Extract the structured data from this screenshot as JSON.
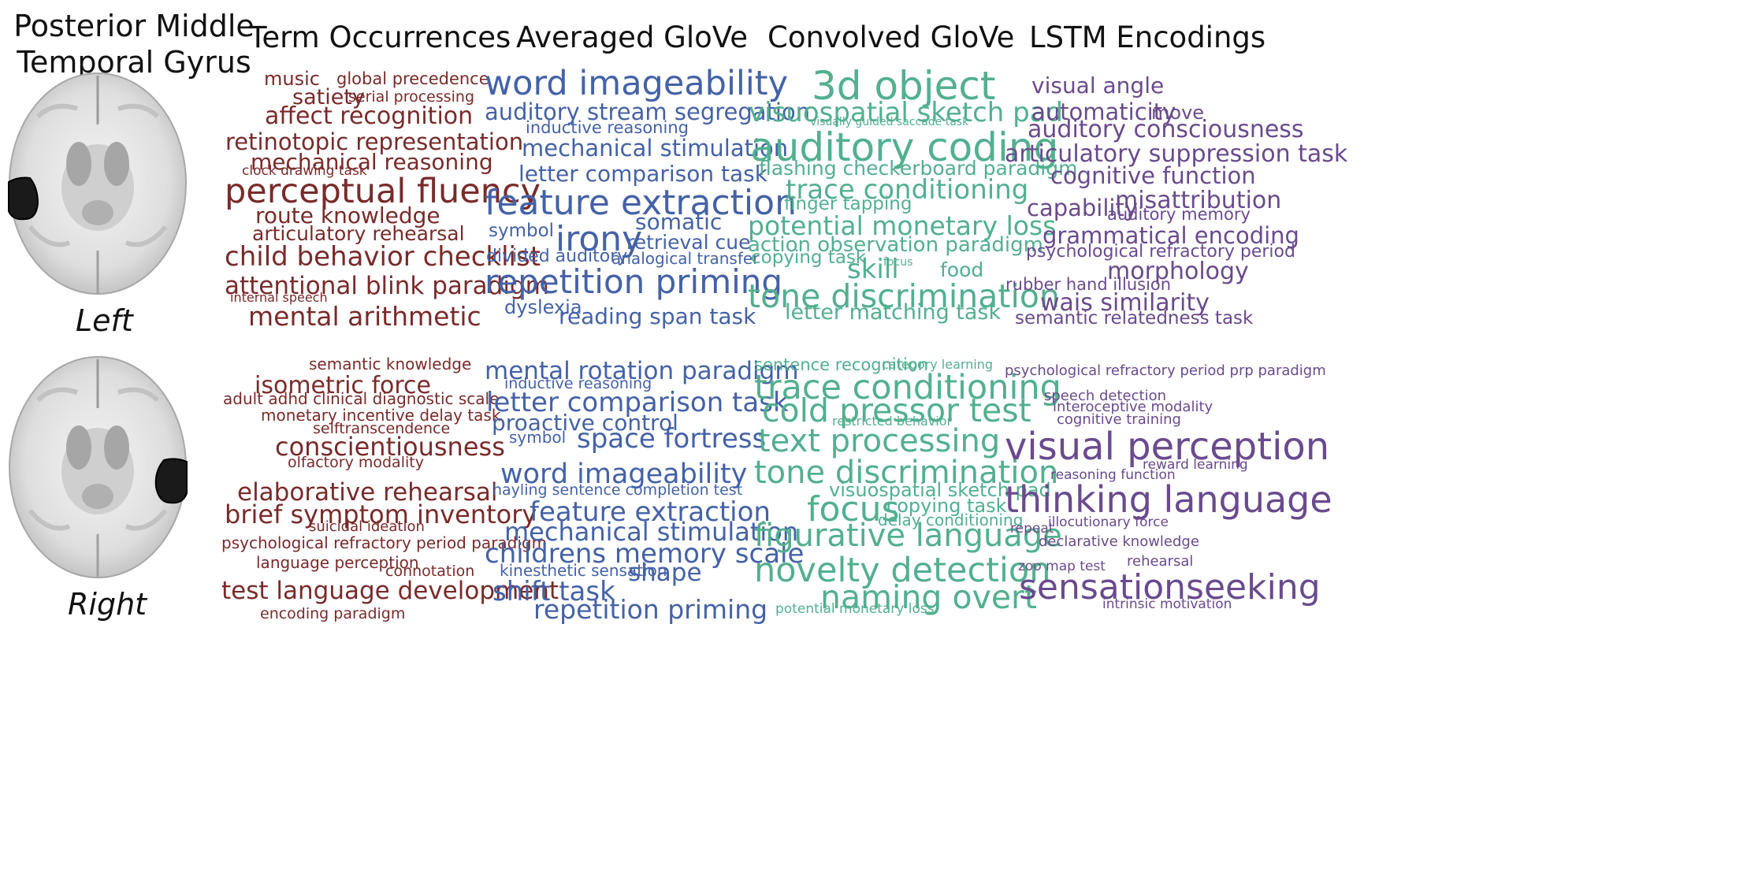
{
  "region": {
    "title_line1": "Posterior Middle",
    "title_line2": "Temporal Gyrus"
  },
  "hemispheres": {
    "left": "Left",
    "right": "Right"
  },
  "columns": [
    {
      "title": "Term Occurrences",
      "color": "#7a2a2a"
    },
    {
      "title": "Averaged GloVe",
      "color": "#4462a8"
    },
    {
      "title": "Convolved GloVe",
      "color": "#52b08e"
    },
    {
      "title": "LSTM Encodings",
      "color": "#6a4a8e"
    }
  ],
  "clouds": {
    "term_left": [
      "music",
      "global precedence",
      "satiety",
      "serial processing",
      "affect recognition",
      "retinotopic representation",
      "mechanical reasoning",
      "clock drawing task",
      "perceptual fluency",
      "route knowledge",
      "articulatory rehearsal",
      "child behavior checklist",
      "attentional blink paradigm",
      "internal speech",
      "mental arithmetic"
    ],
    "term_right": [
      "semantic knowledge",
      "isometric force",
      "adult adhd clinical diagnostic scale",
      "monetary incentive delay task",
      "selftranscendence",
      "conscientiousness",
      "olfactory modality",
      "elaborative rehearsal",
      "brief symptom inventory",
      "suicidal ideation",
      "psychological refractory period paradigm",
      "language perception",
      "connotation",
      "test language development",
      "encoding paradigm"
    ],
    "avg_left": [
      "word imageability",
      "auditory stream segregation",
      "inductive reasoning",
      "mechanical stimulation",
      "letter comparison task",
      "feature extraction",
      "somatic",
      "symbol",
      "irony",
      "retrieval cue",
      "divided auditory",
      "analogical transfer",
      "repetition priming",
      "dyslexia",
      "reading span task"
    ],
    "avg_right": [
      "mental rotation paradigm",
      "inductive reasoning",
      "letter comparison task",
      "proactive control",
      "symbol",
      "space fortress",
      "word imageability",
      "hayling sentence completion test",
      "feature extraction",
      "mechanical stimulation",
      "childrens memory scale",
      "kinesthetic sensation",
      "shape",
      "shift task",
      "repetition priming"
    ],
    "conv_left": [
      "3d object",
      "visuospatial sketch pad",
      "visually guided saccade task",
      "auditory coding",
      "flashing checkerboard paradigm",
      "trace conditioning",
      "finger tapping",
      "potential monetary loss",
      "action observation paradigm",
      "copying task",
      "skill",
      "focus",
      "food",
      "tone discrimination",
      "letter matching task"
    ],
    "conv_right": [
      "sentence recognition",
      "category learning",
      "trace conditioning",
      "cold pressor test",
      "restricted behavior",
      "text processing",
      "tone discrimination",
      "visuospatial sketch pad",
      "focus",
      "copying task",
      "delay conditioning",
      "figurative language",
      "novelty detection",
      "naming overt",
      "potential monetary loss"
    ],
    "lstm_left": [
      "visual angle",
      "automaticity",
      "move",
      "auditory consciousness",
      "articulatory suppression task",
      "cognitive function",
      "misattribution",
      "capability",
      "auditory memory",
      "grammatical encoding",
      "psychological refractory period",
      "morphology",
      "rubber hand illusion",
      "wais similarity",
      "semantic relatedness task"
    ],
    "lstm_right": [
      "psychological refractory period prp paradigm",
      "speech detection",
      "interoceptive modality",
      "cognitive training",
      "visual perception",
      "reward learning",
      "reasoning function",
      "thinking language",
      "repeat",
      "illocutionary force",
      "declarative knowledge",
      "rehearsal",
      "zoo map test",
      "sensationseeking",
      "intrinsic motivation"
    ]
  }
}
